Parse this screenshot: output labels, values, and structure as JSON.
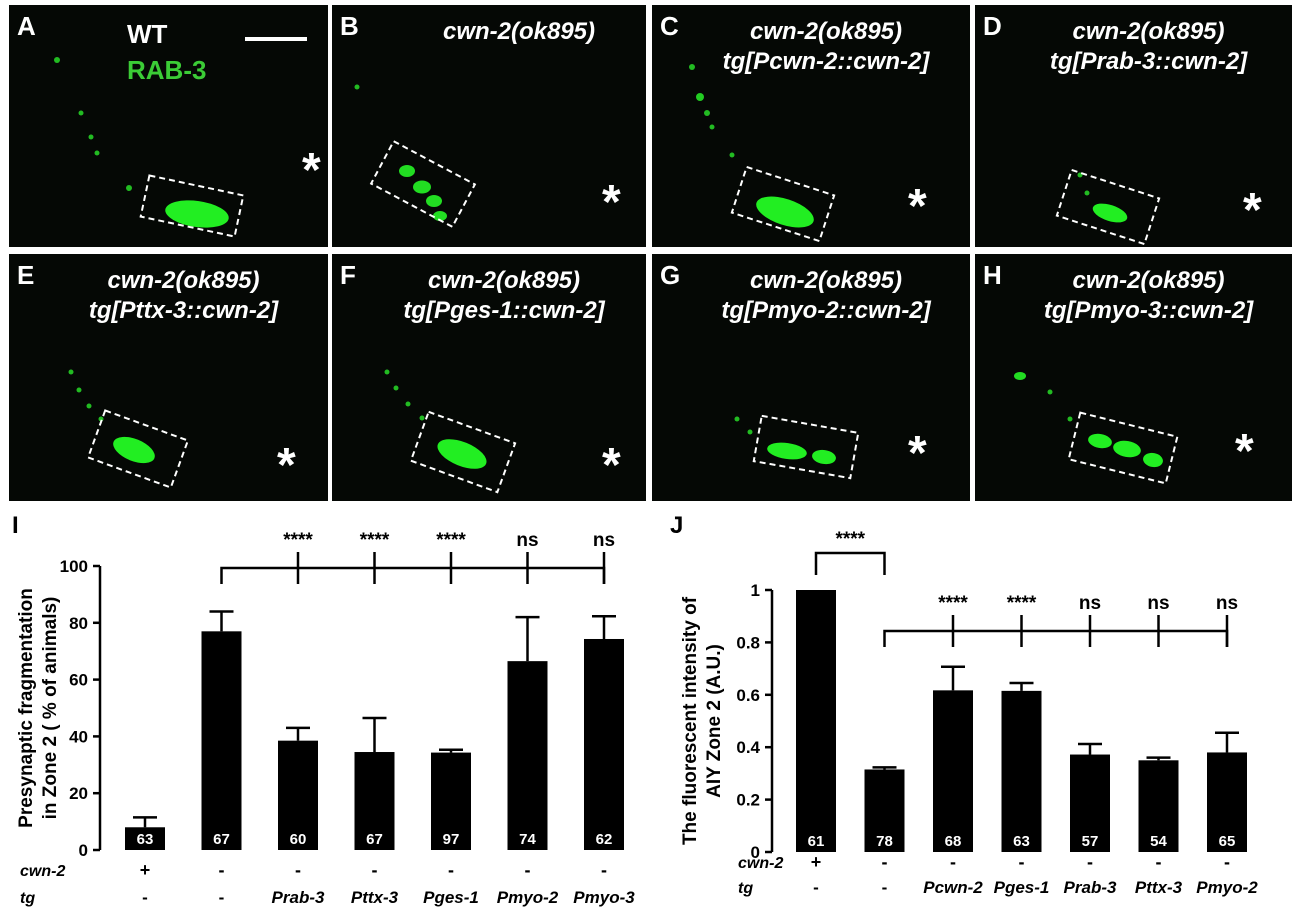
{
  "figure": {
    "panels": [
      {
        "letter": "A",
        "title": [],
        "wt": "WT",
        "marker": "RAB-3",
        "scale_bar": true
      },
      {
        "letter": "B",
        "title": [
          "cwn-2(ok895)"
        ]
      },
      {
        "letter": "C",
        "title": [
          "cwn-2(ok895)",
          "tg[Pcwn-2::cwn-2]"
        ]
      },
      {
        "letter": "D",
        "title": [
          "cwn-2(ok895)",
          "tg[Prab-3::cwn-2]"
        ]
      },
      {
        "letter": "E",
        "title": [
          "cwn-2(ok895)",
          "tg[Pttx-3::cwn-2]"
        ]
      },
      {
        "letter": "F",
        "title": [
          "cwn-2(ok895)",
          "tg[Pges-1::cwn-2]"
        ]
      },
      {
        "letter": "G",
        "title": [
          "cwn-2(ok895)",
          "tg[Pmyo-2::cwn-2]"
        ]
      },
      {
        "letter": "H",
        "title": [
          "cwn-2(ok895)",
          "tg[Pmyo-3::cwn-2]"
        ]
      }
    ],
    "asterisk": "*",
    "colors": {
      "fluorescence": "#22ee22",
      "background": "#050805",
      "bars": "#000000"
    }
  },
  "chart_data": [
    {
      "panel": "I",
      "type": "bar",
      "ylabel": [
        "Presynaptic  fragmentation",
        "in  Zone 2 ( % of animals)"
      ],
      "ylim": [
        0,
        100
      ],
      "yticks": [
        0,
        20,
        40,
        60,
        80,
        100
      ],
      "values": [
        8,
        77,
        38.5,
        34.5,
        34.3,
        66.5,
        74.3
      ],
      "errors": [
        3.5,
        7,
        4.5,
        12,
        1,
        15.5,
        8
      ],
      "n": [
        "63",
        "67",
        "60",
        "67",
        "97",
        "74",
        "62"
      ],
      "row_labels": [
        "cwn-2",
        "tg"
      ],
      "cwn2": [
        "+",
        "-",
        "-",
        "-",
        "-",
        "-",
        "-"
      ],
      "tg": [
        "-",
        "-",
        "Prab-3",
        "Pttx-3",
        "Pges-1",
        "Pmyo-2",
        "Pmyo-3"
      ],
      "comparison": {
        "from": 1,
        "to": [
          2,
          3,
          4,
          5,
          6
        ],
        "labels": [
          "****",
          "****",
          "****",
          "ns",
          "ns"
        ]
      }
    },
    {
      "panel": "J",
      "type": "bar",
      "ylabel": [
        "The fluorescent intensity of",
        "AIY Zone 2 (A.U.)"
      ],
      "ylim": [
        0,
        1
      ],
      "yticks": [
        "0",
        "0.2",
        "0.4",
        "0.6",
        "0.8",
        "1"
      ],
      "values": [
        1.0,
        0.315,
        0.617,
        0.615,
        0.372,
        0.35,
        0.38
      ],
      "errors": [
        0,
        0.008,
        0.09,
        0.03,
        0.04,
        0.01,
        0.075
      ],
      "n": [
        "61",
        "78",
        "68",
        "63",
        "57",
        "54",
        "65"
      ],
      "row_labels": [
        "cwn-2",
        "tg"
      ],
      "cwn2": [
        "+",
        "-",
        "-",
        "-",
        "-",
        "-",
        "-"
      ],
      "tg": [
        "-",
        "-",
        "Pcwn-2",
        "Pges-1",
        "Prab-3",
        "Pttx-3",
        "Pmyo-2"
      ],
      "first_comparison": {
        "from": 0,
        "to": 1,
        "label": "****"
      },
      "comparison": {
        "from": 1,
        "to": [
          2,
          3,
          4,
          5,
          6
        ],
        "labels": [
          "****",
          "****",
          "ns",
          "ns",
          "ns"
        ]
      }
    }
  ]
}
